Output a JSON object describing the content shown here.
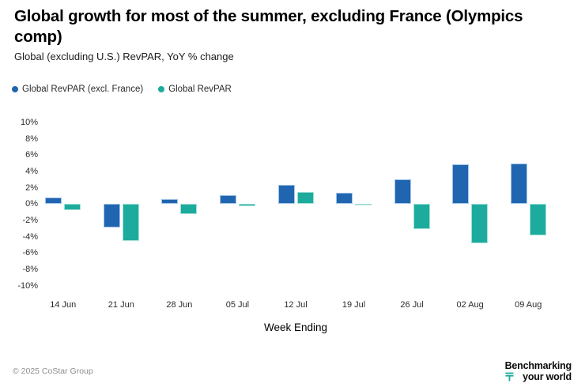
{
  "header": {
    "title": "Global growth for most of the summer, excluding France (Olympics comp)",
    "subtitle": "Global (excluding U.S.) RevPAR, YoY % change"
  },
  "chart_data": {
    "type": "bar",
    "title": "Global growth for most of the summer, excluding France (Olympics comp)",
    "subtitle": "Global (excluding U.S.) RevPAR, YoY % change",
    "categories": [
      "14 Jun",
      "21 Jun",
      "28 Jun",
      "05 Jul",
      "12 Jul",
      "19 Jul",
      "26 Jul",
      "02 Aug",
      "09 Aug"
    ],
    "series": [
      {
        "name": "Global RevPAR (excl. France)",
        "color": "#2065af",
        "border_color": "#a3c6e9",
        "values": [
          0.8,
          -2.9,
          0.6,
          1.1,
          2.4,
          1.4,
          3.0,
          4.9,
          5.0
        ]
      },
      {
        "name": "Global RevPAR",
        "color": "#1cab9d",
        "border_color": "#a2e1d8",
        "values": [
          -0.7,
          -4.5,
          -1.2,
          -0.3,
          1.5,
          -0.2,
          -3.1,
          -4.8,
          -3.8
        ]
      }
    ],
    "xlabel": "Week Ending",
    "ylabel": "",
    "ylim": [
      -10,
      10
    ],
    "ytick_step": 2,
    "ytick_suffix": "%",
    "grid": false,
    "legend_position": "top-left"
  },
  "footer": {
    "copyright": "© 2025 CoStar Group",
    "logo_line1": "Benchmarking",
    "logo_line2": "your world",
    "logo_mark": "tenge-symbol",
    "logo_mark_color": "#1cab9d"
  }
}
